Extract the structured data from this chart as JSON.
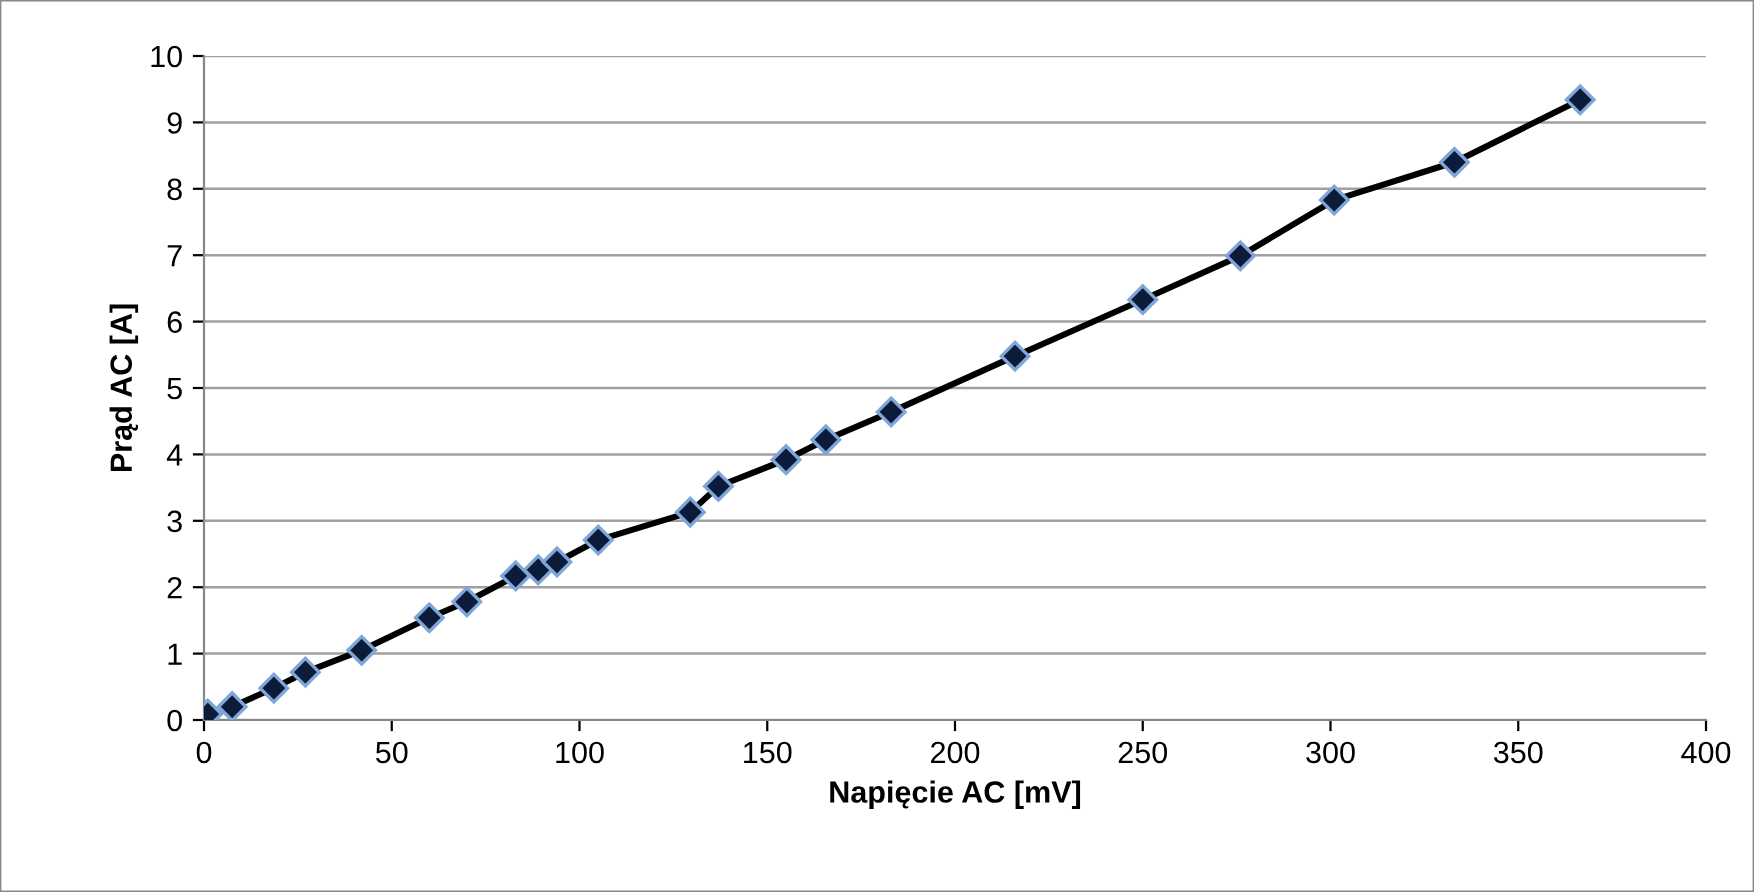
{
  "chart_data": {
    "type": "line",
    "xlabel": "Napięcie AC [mV]",
    "ylabel": "Prąd AC [A]",
    "x": [
      1,
      7.5,
      18.6,
      27,
      42,
      60,
      70,
      83,
      89,
      94,
      105,
      129.5,
      137,
      155,
      165.6,
      183,
      216,
      250,
      276,
      301,
      333,
      366.5
    ],
    "series": [
      {
        "color": "#000000",
        "values": [
          0.09,
          0.2,
          0.48,
          0.72,
          1.05,
          1.54,
          1.78,
          2.17,
          2.26,
          2.38,
          2.71,
          3.13,
          3.52,
          3.92,
          4.22,
          4.64,
          5.48,
          6.33,
          6.99,
          7.83,
          8.4,
          9.34
        ]
      }
    ],
    "xlim": [
      0,
      400
    ],
    "xticks": [
      0,
      50,
      100,
      150,
      200,
      250,
      300,
      350,
      400
    ],
    "ylim": [
      0,
      10
    ],
    "yticks": [
      0,
      1,
      2,
      3,
      4,
      5,
      6,
      7,
      8,
      9,
      10
    ],
    "grid": "y",
    "marker": "diamond",
    "line_style": "solid"
  }
}
